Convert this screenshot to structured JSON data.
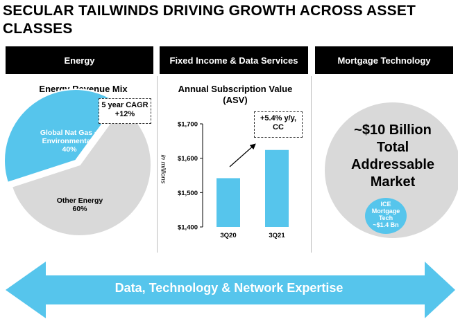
{
  "title": "SECULAR TAILWINDS DRIVING GROWTH ACROSS ASSET CLASSES",
  "headers": [
    "Energy",
    "Fixed Income & Data Services",
    "Mortgage Technology"
  ],
  "energy": {
    "panel_title": "Energy Revenue Mix",
    "callout_line1": "5 year CAGR",
    "callout_line2": "+12%",
    "slice1_label": "Global Nat Gas + Environmentals",
    "slice1_value": "40%",
    "slice2_label": "Other Energy",
    "slice2_value": "60%"
  },
  "asv": {
    "panel_title": "Annual Subscription Value (ASV)",
    "callout_line1": "+5.4% y/y,",
    "callout_line2": "CC",
    "yaxis_label": "in millions"
  },
  "mortgage": {
    "tam_line1": "~$10 Billion",
    "tam_line2": "Total",
    "tam_line3": "Addressable",
    "tam_line4": "Market",
    "ice_line1": "ICE",
    "ice_line2": "Mortgage",
    "ice_line3": "Tech",
    "ice_line4": "~$1.4 Bn"
  },
  "footer_arrow": "Data, Technology & Network Expertise",
  "colors": {
    "accent": "#56c5ec",
    "grey": "#d9d9d9",
    "header_bg": "#000000"
  },
  "chart_data": [
    {
      "type": "pie",
      "title": "Energy Revenue Mix",
      "labels": [
        "Global Nat Gas + Environmentals",
        "Other Energy"
      ],
      "values": [
        40,
        60
      ],
      "colors": [
        "#56c5ec",
        "#d9d9d9"
      ]
    },
    {
      "type": "bar",
      "title": "Annual Subscription Value (ASV)",
      "categories": [
        "3Q20",
        "3Q21"
      ],
      "values": [
        1542,
        1624
      ],
      "ylabel": "in millions",
      "ylim": [
        1400,
        1700
      ],
      "yticks": [
        "$1,400",
        "$1,500",
        "$1,600",
        "$1,700"
      ],
      "ytick_values": [
        1400,
        1500,
        1600,
        1700
      ],
      "color": "#56c5ec"
    }
  ]
}
